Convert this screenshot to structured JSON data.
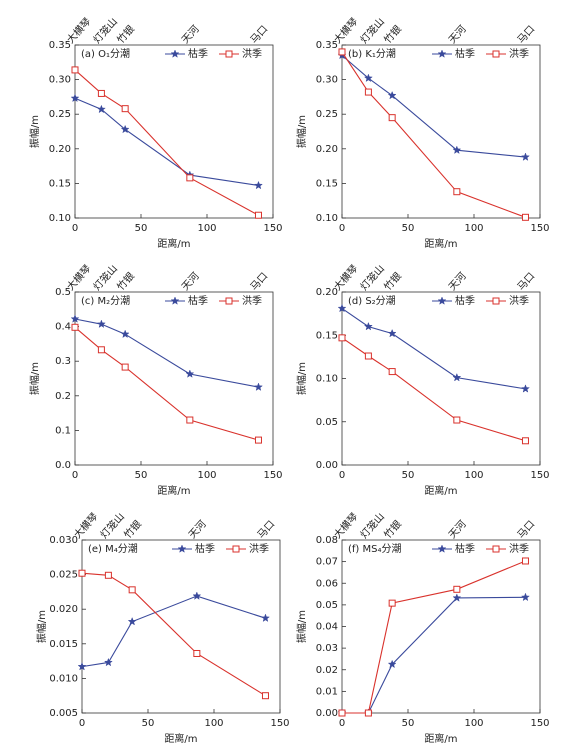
{
  "chart_data": [
    {
      "type": "line",
      "title": "(a) O₁分潮",
      "x_label": "距离/m",
      "y_label": "振幅/m",
      "x": [
        0,
        20,
        38,
        87,
        139
      ],
      "x_top_labels": [
        "大横琴",
        "灯笼山",
        "竹银",
        "天河",
        "马口"
      ],
      "xlim": [
        0,
        150
      ],
      "xticks": [
        0,
        50,
        100,
        150
      ],
      "ylim": [
        0.1,
        0.35
      ],
      "yticks": [
        {
          "value": 0.1,
          "label": "0.10"
        },
        0.15,
        {
          "value": 0.2,
          "label": "0.20"
        },
        0.25,
        {
          "value": 0.3,
          "label": "0.30"
        },
        0.35
      ],
      "legend": "upper right",
      "series": [
        {
          "name": "枯季",
          "color": "#3a4a9c",
          "marker": "star",
          "values": [
            0.273,
            0.257,
            0.228,
            0.162,
            0.147
          ]
        },
        {
          "name": "洪季",
          "color": "#d9322c",
          "marker": "square",
          "values": [
            0.314,
            0.28,
            0.258,
            0.158,
            0.104
          ]
        }
      ]
    },
    {
      "type": "line",
      "title": "(b) K₁分潮",
      "x_label": "距离/m",
      "y_label": "振幅/m",
      "x": [
        0,
        20,
        38,
        87,
        139
      ],
      "x_top_labels": [
        "大横琴",
        "灯笼山",
        "竹银",
        "天河",
        "马口"
      ],
      "xlim": [
        0,
        150
      ],
      "xticks": [
        0,
        50,
        100,
        150
      ],
      "ylim": [
        0.1,
        0.35
      ],
      "yticks": [
        {
          "value": 0.1,
          "label": "0.10"
        },
        0.15,
        {
          "value": 0.2,
          "label": "0.20"
        },
        0.25,
        {
          "value": 0.3,
          "label": "0.30"
        },
        0.35
      ],
      "legend": "upper right",
      "series": [
        {
          "name": "枯季",
          "color": "#3a4a9c",
          "marker": "star",
          "values": [
            0.335,
            0.302,
            0.277,
            0.198,
            0.188
          ]
        },
        {
          "name": "洪季",
          "color": "#d9322c",
          "marker": "square",
          "values": [
            0.34,
            0.282,
            0.245,
            0.138,
            0.101
          ]
        }
      ]
    },
    {
      "type": "line",
      "title": "(c) M₂分潮",
      "x_label": "距离/m",
      "y_label": "振幅/m",
      "x": [
        0,
        20,
        38,
        87,
        139
      ],
      "x_top_labels": [
        "大横琴",
        "灯笼山",
        "竹银",
        "天河",
        "马口"
      ],
      "xlim": [
        0,
        150
      ],
      "xticks": [
        0,
        50,
        100,
        150
      ],
      "ylim": [
        0,
        0.5
      ],
      "yticks": [
        {
          "value": 0,
          "label": "0.0"
        },
        0.1,
        0.2,
        0.3,
        0.4,
        0.5
      ],
      "legend": "upper right",
      "series": [
        {
          "name": "枯季",
          "color": "#3a4a9c",
          "marker": "star",
          "values": [
            0.422,
            0.407,
            0.378,
            0.263,
            0.225
          ]
        },
        {
          "name": "洪季",
          "color": "#d9322c",
          "marker": "square",
          "values": [
            0.398,
            0.333,
            0.283,
            0.13,
            0.072
          ]
        }
      ]
    },
    {
      "type": "line",
      "title": "(d) S₂分潮",
      "x_label": "距离/m",
      "y_label": "振幅/m",
      "x": [
        0,
        20,
        38,
        87,
        139
      ],
      "x_top_labels": [
        "大横琴",
        "灯笼山",
        "竹银",
        "天河",
        "马口"
      ],
      "xlim": [
        0,
        150
      ],
      "xticks": [
        0,
        50,
        100,
        150
      ],
      "ylim": [
        0,
        0.2
      ],
      "yticks": [
        {
          "value": 0,
          "label": "0.00"
        },
        0.05,
        {
          "value": 0.1,
          "label": "0.10"
        },
        0.15,
        {
          "value": 0.2,
          "label": "0.20"
        }
      ],
      "legend": "upper right",
      "series": [
        {
          "name": "枯季",
          "color": "#3a4a9c",
          "marker": "star",
          "values": [
            0.181,
            0.16,
            0.152,
            0.101,
            0.088
          ]
        },
        {
          "name": "洪季",
          "color": "#d9322c",
          "marker": "square",
          "values": [
            0.147,
            0.126,
            0.108,
            0.052,
            0.028
          ]
        }
      ]
    },
    {
      "type": "line",
      "title": "(e) M₄分潮",
      "x_label": "距离/m",
      "y_label": "振幅/m",
      "x": [
        0,
        20,
        38,
        87,
        139
      ],
      "x_top_labels": [
        "大横琴",
        "灯笼山",
        "竹银",
        "天河",
        "马口"
      ],
      "xlim": [
        0,
        150
      ],
      "xticks": [
        0,
        50,
        100,
        150
      ],
      "ylim": [
        0.005,
        0.03
      ],
      "yticks": [
        0.005,
        {
          "value": 0.01,
          "label": "0.010"
        },
        0.015,
        {
          "value": 0.02,
          "label": "0.020"
        },
        0.025,
        {
          "value": 0.03,
          "label": "0.030"
        }
      ],
      "legend": "upper right",
      "series": [
        {
          "name": "枯季",
          "color": "#3a4a9c",
          "marker": "star",
          "values": [
            0.0117,
            0.0123,
            0.0182,
            0.0219,
            0.0187
          ]
        },
        {
          "name": "洪季",
          "color": "#d9322c",
          "marker": "square",
          "values": [
            0.0252,
            0.0249,
            0.0228,
            0.0136,
            0.0075
          ]
        }
      ]
    },
    {
      "type": "line",
      "title": "(f) MS₄分潮",
      "x_label": "距离/m",
      "y_label": "振幅/m",
      "x": [
        0,
        20,
        38,
        87,
        139
      ],
      "x_top_labels": [
        "大横琴",
        "灯笼山",
        "竹银",
        "天河",
        "马口"
      ],
      "xlim": [
        0,
        150
      ],
      "xticks": [
        0,
        50,
        100,
        150
      ],
      "ylim": [
        0,
        0.08
      ],
      "yticks": [
        {
          "value": 0,
          "label": "0.00"
        },
        0.01,
        0.02,
        0.03,
        0.04,
        0.05,
        0.06,
        0.07,
        0.08
      ],
      "legend": "upper right",
      "series": [
        {
          "name": "枯季",
          "color": "#3a4a9c",
          "marker": "star",
          "values": [
            0,
            0,
            0.0225,
            0.0532,
            0.0535
          ]
        },
        {
          "name": "洪季",
          "color": "#d9322c",
          "marker": "square",
          "values": [
            0,
            0,
            0.0508,
            0.0572,
            0.0703
          ]
        }
      ]
    }
  ]
}
